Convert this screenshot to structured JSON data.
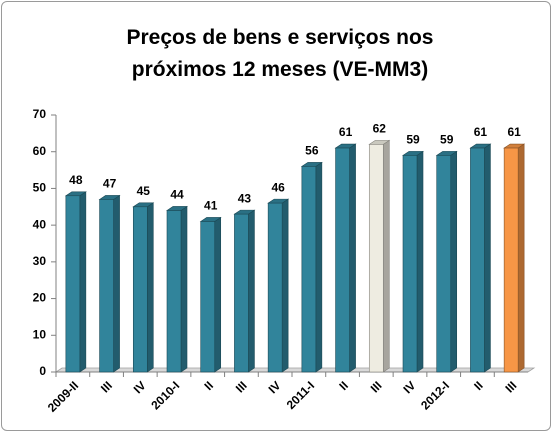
{
  "chart_data": {
    "type": "bar3d",
    "title": "Preços de bens e serviços nos próximos 12 meses (VE-MM3)",
    "categories": [
      "2009-II",
      "III",
      "IV",
      "2010-I",
      "II",
      "III",
      "IV",
      "2011-I",
      "II",
      "III",
      "IV",
      "2012-I",
      "II",
      "III"
    ],
    "values": [
      48,
      47,
      45,
      44,
      41,
      43,
      46,
      56,
      61,
      62,
      59,
      59,
      61,
      61
    ],
    "colors": [
      "#31849b",
      "#31849b",
      "#31849b",
      "#31849b",
      "#31849b",
      "#31849b",
      "#31849b",
      "#31849b",
      "#31849b",
      "#eeece1",
      "#31849b",
      "#31849b",
      "#31849b",
      "#f79646"
    ],
    "ylim": [
      0,
      70
    ],
    "yticks": [
      0,
      10,
      20,
      30,
      40,
      50,
      60,
      70
    ],
    "grid": false
  }
}
